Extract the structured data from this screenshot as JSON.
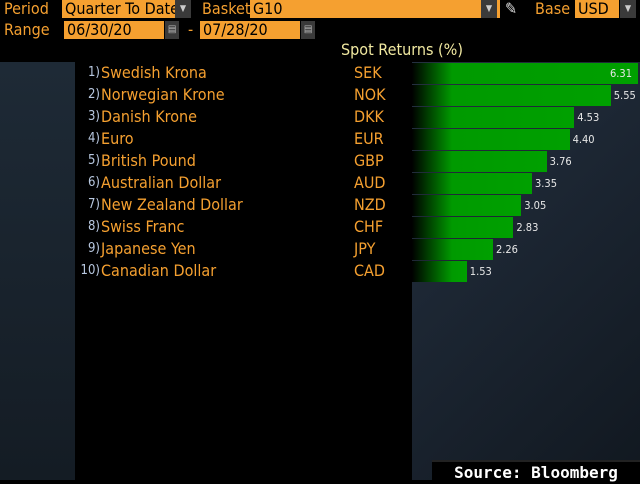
{
  "controls": {
    "period_label": "Period",
    "period_value": "Quarter To Date",
    "basket_label": "Basket",
    "basket_value": "G10",
    "base_label": "Base",
    "base_value": "USD",
    "range_label": "Range",
    "range_start": "06/30/20",
    "range_sep": "-",
    "range_end": "07/28/20"
  },
  "chart_data": {
    "type": "bar",
    "title": "Spot Returns (%)",
    "orientation": "horizontal",
    "ranks": [
      "1)",
      "2)",
      "3)",
      "4)",
      "5)",
      "6)",
      "7)",
      "8)",
      "9)",
      "10)"
    ],
    "categories": [
      "Swedish Krona",
      "Norwegian Krone",
      "Danish Krone",
      "Euro",
      "British Pound",
      "Australian Dollar",
      "New Zealand Dollar",
      "Swiss Franc",
      "Japanese Yen",
      "Canadian Dollar"
    ],
    "codes": [
      "SEK",
      "NOK",
      "DKK",
      "EUR",
      "GBP",
      "AUD",
      "NZD",
      "CHF",
      "JPY",
      "CAD"
    ],
    "values": [
      6.31,
      5.55,
      4.53,
      4.4,
      3.76,
      3.35,
      3.05,
      2.83,
      2.26,
      1.53
    ],
    "labels": [
      "6.31",
      "5.55",
      "4.53",
      "4.40",
      "3.76",
      "3.35",
      "3.05",
      "2.83",
      "2.26",
      "1.53"
    ],
    "xlim": [
      0,
      6.31
    ],
    "bar_color": "#00a000"
  },
  "source": "Source: Bloomberg"
}
